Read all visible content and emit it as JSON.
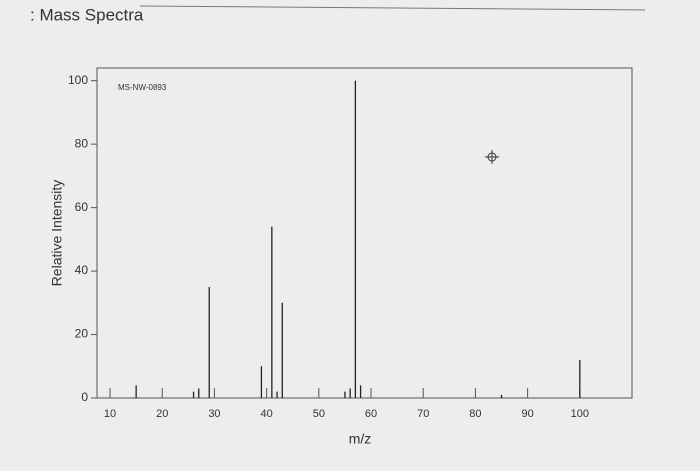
{
  "chart_data": {
    "type": "stem",
    "title": ": Mass Spectra",
    "annotation": "MS-NW-0893",
    "xlabel": "m/z",
    "ylabel": "Relative Intensity",
    "x": [
      15,
      26,
      27,
      29,
      39,
      41,
      42,
      43,
      55,
      56,
      57,
      58,
      85,
      100
    ],
    "values": [
      4,
      2,
      3,
      35,
      10,
      54,
      2,
      30,
      2,
      3,
      100,
      4,
      1,
      12
    ],
    "color": "#222222",
    "xlim": [
      7.5,
      110
    ],
    "ylim": [
      0,
      104
    ],
    "xticks": [
      10,
      20,
      30,
      40,
      50,
      60,
      70,
      80,
      90,
      100
    ],
    "yticks": [
      0,
      20,
      40,
      60,
      80,
      100
    ]
  }
}
